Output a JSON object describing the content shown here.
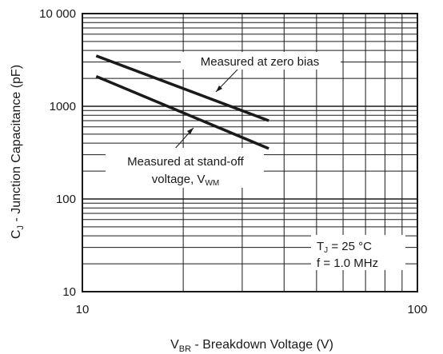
{
  "chart_data": {
    "type": "line",
    "xscale": "log",
    "yscale": "log",
    "xlim": [
      10,
      100
    ],
    "ylim": [
      10,
      10000
    ],
    "grid": true,
    "x_ticks": [
      {
        "value": 10,
        "label": "10"
      },
      {
        "value": 100,
        "label": "100"
      }
    ],
    "y_ticks": [
      {
        "value": 10,
        "label": "10"
      },
      {
        "value": 100,
        "label": "100"
      },
      {
        "value": 1000,
        "label": "1000"
      },
      {
        "value": 10000,
        "label": "10 000"
      }
    ],
    "ylabel": {
      "main": "C",
      "sub": "J",
      "rest": " - Junction Capacitance (pF)"
    },
    "xlabel": {
      "main": "V",
      "sub": "BR",
      "rest": " - Breakdown Voltage (V)"
    },
    "series": [
      {
        "name": "Measured at zero bias",
        "x": [
          11,
          36
        ],
        "y": [
          3500,
          700
        ]
      },
      {
        "name": "Measured at stand-off voltage, V_WM",
        "x": [
          11,
          36
        ],
        "y": [
          2100,
          350
        ]
      }
    ],
    "annotations": {
      "zero_bias": "Measured at zero bias",
      "standoff_line1": "Measured at stand-off",
      "standoff_line2_main": "voltage, V",
      "standoff_line2_sub": "WM",
      "conditions_tj_main": "T",
      "conditions_tj_sub": "J",
      "conditions_tj_rest": " = 25 °C",
      "conditions_f": "f = 1.0 MHz"
    }
  }
}
